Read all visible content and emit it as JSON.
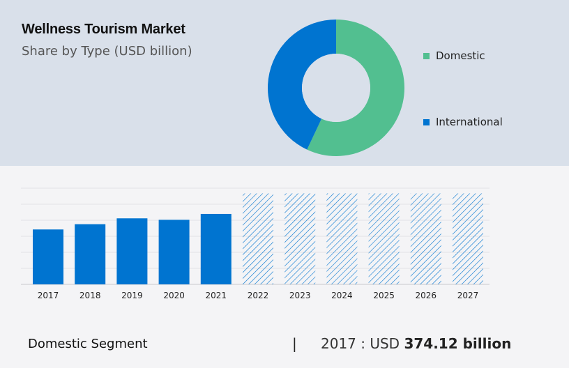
{
  "title": "Wellness Tourism Market",
  "subtitle": "Share by Type (USD billion)",
  "colors": {
    "domestic": "#52bf90",
    "international": "#0074d0",
    "bar": "#0074d0",
    "forecast_hatch": "#0074d0",
    "panel_bg": "#d9e0ea"
  },
  "chart_data": [
    {
      "type": "pie",
      "donut": true,
      "title": "Wellness Tourism Market",
      "subtitle": "Share by Type (USD billion)",
      "labels": [
        "Domestic",
        "International"
      ],
      "values": [
        57,
        43
      ],
      "legend": "right"
    },
    {
      "type": "bar",
      "categories": [
        "2017",
        "2018",
        "2019",
        "2020",
        "2021",
        "2022",
        "2023",
        "2024",
        "2025",
        "2026",
        "2027"
      ],
      "values": [
        374.12,
        410,
        450,
        440,
        480,
        620,
        620,
        620,
        620,
        620,
        620
      ],
      "forecast_from": "2022",
      "ylim": [
        0,
        760
      ],
      "grid": true
    }
  ],
  "footer": {
    "segment_label": "Domestic Segment",
    "divider": "|",
    "year_prefix": "2017 : USD",
    "value": "374.12 billion"
  }
}
